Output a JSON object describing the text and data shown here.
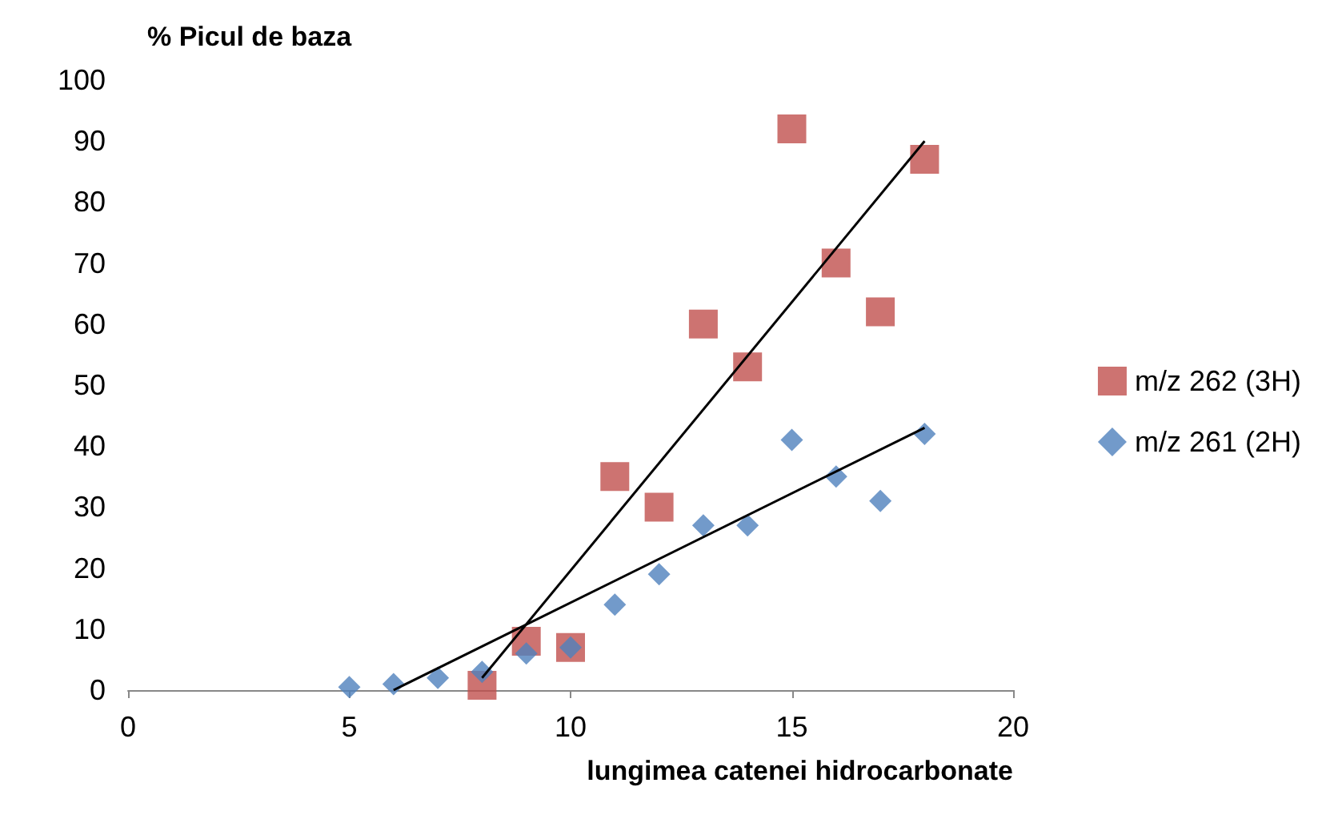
{
  "chart_data": {
    "type": "scatter",
    "xlabel": "lungimea catenei hidrocarbonate",
    "ylabel": "% Picul de baza",
    "xlim": [
      0,
      20
    ],
    "xticks": [
      0,
      5,
      10,
      15,
      20
    ],
    "ylim": [
      0,
      100
    ],
    "yticks": [
      0,
      10,
      20,
      30,
      40,
      50,
      60,
      70,
      80,
      90,
      100
    ],
    "grid": false,
    "legend": "right",
    "series": [
      {
        "name": "m/z 262 (3H)",
        "color": "#c0504d",
        "marker": "square",
        "x": [
          8,
          9,
          10,
          11,
          12,
          13,
          14,
          15,
          16,
          17,
          18
        ],
        "values": [
          0.8,
          8,
          7,
          35,
          30,
          60,
          53,
          92,
          70,
          62,
          87
        ]
      },
      {
        "name": "m/z 261 (2H)",
        "color": "#4f81bd",
        "marker": "diamond",
        "x": [
          5,
          6,
          7,
          8,
          9,
          10,
          11,
          12,
          13,
          14,
          15,
          16,
          17,
          18
        ],
        "values": [
          0.5,
          1,
          2,
          3,
          6,
          7,
          14,
          19,
          27,
          27,
          41,
          35,
          31,
          42
        ]
      },
      {
        "type": "line",
        "color": "#000000",
        "marker": "none",
        "x": [
          8,
          18
        ],
        "values": [
          2,
          90
        ]
      },
      {
        "type": "line",
        "color": "#000000",
        "marker": "none",
        "x": [
          6,
          18
        ],
        "values": [
          0,
          43
        ]
      }
    ]
  }
}
